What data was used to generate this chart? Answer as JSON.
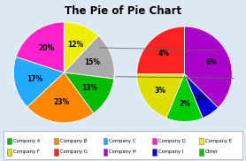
{
  "title": "The Pie of Pie Chart",
  "main_vals": [
    12,
    15,
    13,
    23,
    17,
    20
  ],
  "main_colors": [
    "#eeee00",
    "#aaaaaa",
    "#00bb00",
    "#ff8800",
    "#22aaff",
    "#ff22cc"
  ],
  "main_labels": [
    "12%",
    "15%",
    "13%",
    "23%",
    "17%",
    "20%"
  ],
  "main_startangle": 90,
  "sub_vals": [
    6,
    1,
    2,
    3,
    4
  ],
  "sub_colors": [
    "#aa00cc",
    "#0000dd",
    "#00cc00",
    "#dddd00",
    "#ff2222"
  ],
  "sub_labels": [
    "6%",
    "1%",
    "2%",
    "3%",
    "4%"
  ],
  "sub_startangle": 90,
  "legend_labels_row1": [
    "Company A",
    "Company B",
    "Company C",
    "Company D",
    "Company E"
  ],
  "legend_colors_row1": [
    "#00bb00",
    "#ff8800",
    "#22aaff",
    "#ff22cc",
    "#eeee00"
  ],
  "legend_labels_row2": [
    "Company F",
    "Company G",
    "Company H",
    "Company I",
    "Other"
  ],
  "legend_colors_row2": [
    "#dddd00",
    "#ff2222",
    "#aa00cc",
    "#0000dd",
    "#00cc00"
  ],
  "background": "#dde8f5",
  "connector_color": "#666666"
}
